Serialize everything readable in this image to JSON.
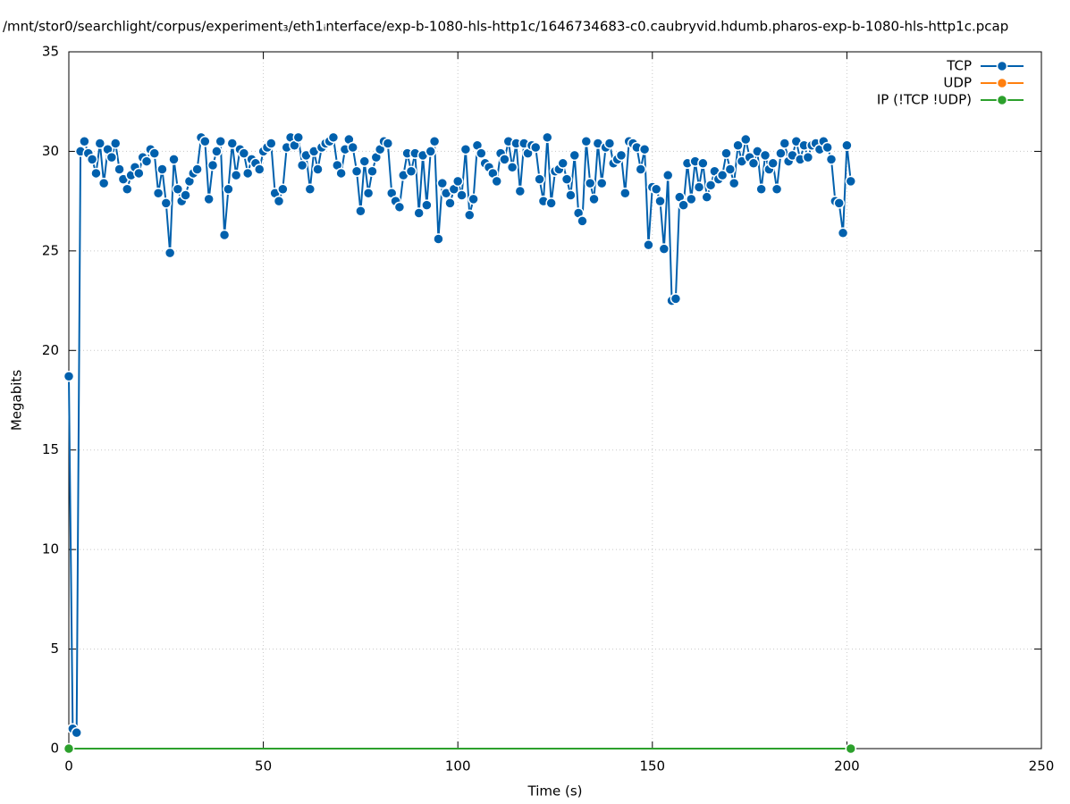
{
  "chart_data": {
    "type": "line",
    "title": "/mnt/stor0/searchlight/corpus/experiment₃/eth1ᵢnterface/exp-b-1080-hls-http1c/1646734683-c0.caubryvid.hdumb.pharos-exp-b-1080-hls-http1c.pcap",
    "xlabel": "Time (s)",
    "ylabel": "Megabits",
    "xlim": [
      0,
      250
    ],
    "xticks": [
      0,
      50,
      100,
      150,
      200,
      250
    ],
    "ylim": [
      0,
      35
    ],
    "yticks": [
      0,
      5,
      10,
      15,
      20,
      25,
      30,
      35
    ],
    "grid": true,
    "legend": "top-right",
    "series": [
      {
        "name": "TCP",
        "color": "#0060ad",
        "x": [
          0,
          1,
          2,
          3,
          4,
          5,
          6,
          7,
          8,
          9,
          10,
          11,
          12,
          13,
          14,
          15,
          16,
          17,
          18,
          19,
          20,
          21,
          22,
          23,
          24,
          25,
          26,
          27,
          28,
          29,
          30,
          31,
          32,
          33,
          34,
          35,
          36,
          37,
          38,
          39,
          40,
          41,
          42,
          43,
          44,
          45,
          46,
          47,
          48,
          49,
          50,
          51,
          52,
          53,
          54,
          55,
          56,
          57,
          58,
          59,
          60,
          61,
          62,
          63,
          64,
          65,
          66,
          67,
          68,
          69,
          70,
          71,
          72,
          73,
          74,
          75,
          76,
          77,
          78,
          79,
          80,
          81,
          82,
          83,
          84,
          85,
          86,
          87,
          88,
          89,
          90,
          91,
          92,
          93,
          94,
          95,
          96,
          97,
          98,
          99,
          100,
          101,
          102,
          103,
          104,
          105,
          106,
          107,
          108,
          109,
          110,
          111,
          112,
          113,
          114,
          115,
          116,
          117,
          118,
          119,
          120,
          121,
          122,
          123,
          124,
          125,
          126,
          127,
          128,
          129,
          130,
          131,
          132,
          133,
          134,
          135,
          136,
          137,
          138,
          139,
          140,
          141,
          142,
          143,
          144,
          145,
          146,
          147,
          148,
          149,
          150,
          151,
          152,
          153,
          154,
          155,
          156,
          157,
          158,
          159,
          160,
          161,
          162,
          163,
          164,
          165,
          166,
          167,
          168,
          169,
          170,
          171,
          172,
          173,
          174,
          175,
          176,
          177,
          178,
          179,
          180,
          181,
          182,
          183,
          184,
          185,
          186,
          187,
          188,
          189,
          190,
          191,
          192,
          193,
          194,
          195,
          196,
          197,
          198,
          199,
          200,
          201
        ],
        "values": [
          18.7,
          1.0,
          0.8,
          30.0,
          30.5,
          29.9,
          29.6,
          28.9,
          30.4,
          28.4,
          30.1,
          29.7,
          30.4,
          29.1,
          28.6,
          28.1,
          28.8,
          29.2,
          28.9,
          29.7,
          29.5,
          30.1,
          29.9,
          27.9,
          29.1,
          27.4,
          24.9,
          29.6,
          28.1,
          27.5,
          27.8,
          28.5,
          28.9,
          29.1,
          30.7,
          30.5,
          27.6,
          29.3,
          30.0,
          30.5,
          25.8,
          28.1,
          30.4,
          28.8,
          30.1,
          29.9,
          28.9,
          29.6,
          29.4,
          29.1,
          30.0,
          30.2,
          30.4,
          27.9,
          27.5,
          28.1,
          30.2,
          30.7,
          30.3,
          30.7,
          29.3,
          29.8,
          28.1,
          30.0,
          29.1,
          30.2,
          30.4,
          30.5,
          30.7,
          29.3,
          28.9,
          30.1,
          30.6,
          30.2,
          29.0,
          27.0,
          29.5,
          27.9,
          29.0,
          29.7,
          30.1,
          30.5,
          30.4,
          27.9,
          27.5,
          27.2,
          28.8,
          29.9,
          29.0,
          29.9,
          26.9,
          29.8,
          27.3,
          30.0,
          30.5,
          25.6,
          28.4,
          27.9,
          27.4,
          28.1,
          28.5,
          27.8,
          30.1,
          26.8,
          27.6,
          30.3,
          29.9,
          29.4,
          29.2,
          28.9,
          28.5,
          29.9,
          29.6,
          30.5,
          29.2,
          30.4,
          28.0,
          30.4,
          29.9,
          30.3,
          30.2,
          28.6,
          27.5,
          30.7,
          27.4,
          29.0,
          29.1,
          29.4,
          28.6,
          27.8,
          29.8,
          26.9,
          26.5,
          30.5,
          28.4,
          27.6,
          30.4,
          28.4,
          30.2,
          30.4,
          29.4,
          29.6,
          29.8,
          27.9,
          30.5,
          30.4,
          30.2,
          29.1,
          30.1,
          25.3,
          28.2,
          28.1,
          27.5,
          25.1,
          28.8,
          22.5,
          22.6,
          27.7,
          27.3,
          29.4,
          27.6,
          29.5,
          28.2,
          29.4,
          27.7,
          28.3,
          29.0,
          28.6,
          28.8,
          29.9,
          29.1,
          28.4,
          30.3,
          29.5,
          30.6,
          29.7,
          29.4,
          30.0,
          28.1,
          29.8,
          29.1,
          29.4,
          28.1,
          29.9,
          30.4,
          29.5,
          29.8,
          30.5,
          29.6,
          30.3,
          29.7,
          30.3,
          30.4,
          30.1,
          30.5,
          30.2,
          29.6,
          27.5,
          27.4,
          25.9,
          30.3,
          28.5
        ]
      },
      {
        "name": "UDP",
        "color": "#ff7f0e",
        "x": [],
        "values": []
      },
      {
        "name": "IP (!TCP  !UDP)",
        "color": "#2ca02c",
        "x": [
          0,
          201
        ],
        "values": [
          0,
          0
        ]
      }
    ]
  }
}
